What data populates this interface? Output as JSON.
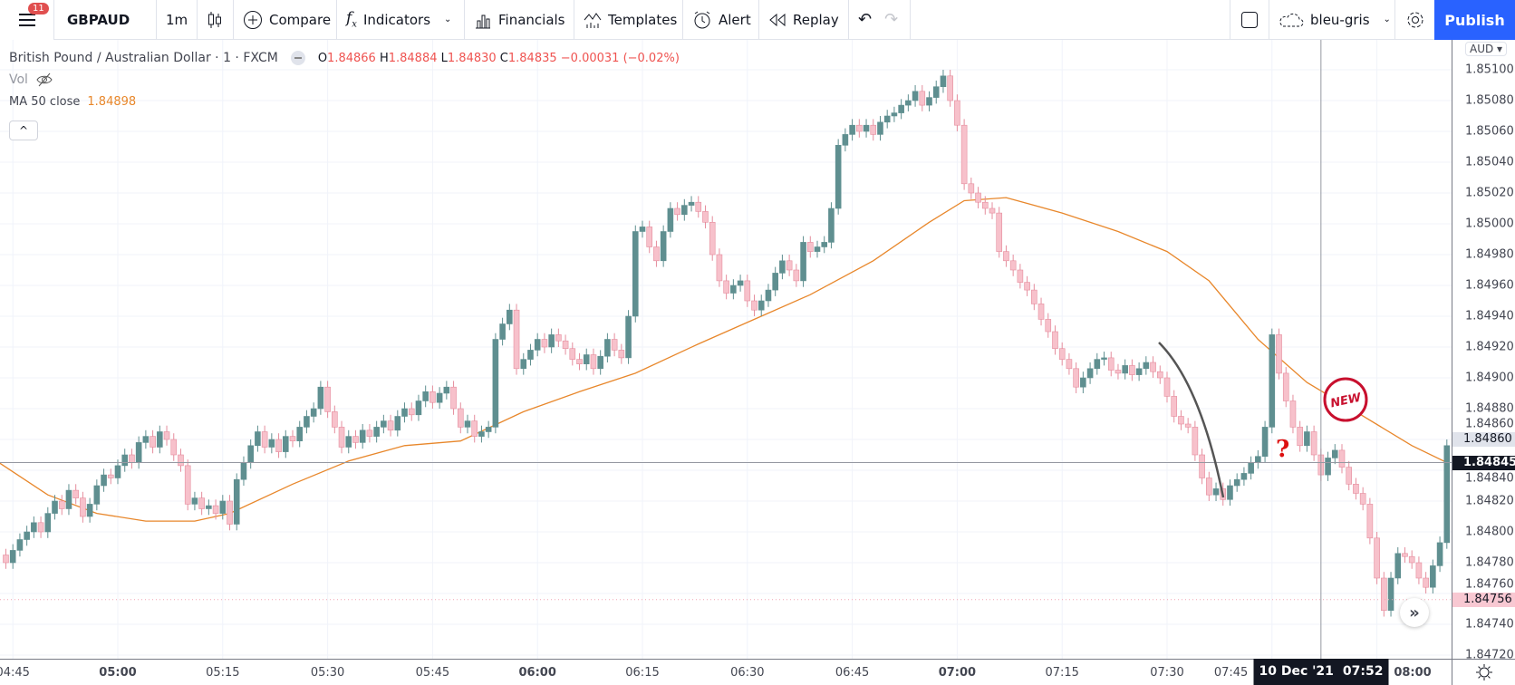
{
  "toolbar": {
    "notification_count": "11",
    "symbol": "GBPAUD",
    "interval": "1m",
    "compare": "Compare",
    "indicators": "Indicators",
    "financials": "Financials",
    "templates": "Templates",
    "alert": "Alert",
    "replay": "Replay",
    "layout_name": "bleu-gris",
    "publish": "Publish"
  },
  "legend": {
    "title": "British Pound / Australian Dollar · 1 · FXCM",
    "o_label": "O",
    "o": "1.84866",
    "h_label": "H",
    "h": "1.84884",
    "l_label": "L",
    "l": "1.84830",
    "c_label": "C",
    "c": "1.84835",
    "change": "−0.00031 (−0.02%)",
    "vol": "Vol",
    "ma_label": "MA 50 close",
    "ma_value": "1.84898",
    "collapse": "^"
  },
  "price_axis": {
    "currency": "AUD ▾",
    "ticks": [
      "1.85100",
      "1.85080",
      "1.85060",
      "1.85040",
      "1.85020",
      "1.85000",
      "1.84980",
      "1.84960",
      "1.84940",
      "1.84920",
      "1.84900",
      "1.84880",
      "1.84860",
      "1.84840",
      "1.84820",
      "1.84800",
      "1.84780",
      "1.84760",
      "1.84740",
      "1.84720"
    ],
    "last_price_label": "1.84860",
    "crosshair_price_label": "1.84845",
    "pink_price_label": "1.84756"
  },
  "time_axis": {
    "labels": [
      {
        "t": "04:45",
        "bold": false
      },
      {
        "t": "05:00",
        "bold": true
      },
      {
        "t": "05:15",
        "bold": false
      },
      {
        "t": "05:30",
        "bold": false
      },
      {
        "t": "05:45",
        "bold": false
      },
      {
        "t": "06:00",
        "bold": true
      },
      {
        "t": "06:15",
        "bold": false
      },
      {
        "t": "06:30",
        "bold": false
      },
      {
        "t": "06:45",
        "bold": false
      },
      {
        "t": "07:00",
        "bold": true
      },
      {
        "t": "07:15",
        "bold": false
      },
      {
        "t": "07:30",
        "bold": false
      },
      {
        "t": "07:45",
        "bold": false
      },
      {
        "t": "08:00",
        "bold": true
      }
    ],
    "crosshair_date": "10 Dec '21",
    "crosshair_time": "07:52"
  },
  "annotations": {
    "sticker": "NEW",
    "question": "?"
  },
  "colors": {
    "up": "#5f8f90",
    "down": "#f7c1cb",
    "down_border": "#e58d9d",
    "ma": "#e8872b",
    "accent": "#2962ff"
  },
  "chart_data": {
    "type": "candlestick",
    "interval": "1m",
    "first_candle_time": "04:44",
    "closes": [
      1.8478,
      1.84788,
      1.84795,
      1.848,
      1.84806,
      1.848,
      1.84812,
      1.8482,
      1.84815,
      1.84827,
      1.84822,
      1.8481,
      1.84818,
      1.8483,
      1.84837,
      1.84835,
      1.84843,
      1.8485,
      1.84845,
      1.84858,
      1.84862,
      1.84855,
      1.84865,
      1.8486,
      1.8485,
      1.84843,
      1.84818,
      1.84822,
      1.84815,
      1.84817,
      1.84812,
      1.8482,
      1.84805,
      1.84834,
      1.84845,
      1.84856,
      1.84865,
      1.84855,
      1.8486,
      1.84852,
      1.84862,
      1.84859,
      1.84868,
      1.84875,
      1.8488,
      1.84894,
      1.84878,
      1.84868,
      1.84855,
      1.84862,
      1.84858,
      1.84866,
      1.84862,
      1.84868,
      1.84872,
      1.84866,
      1.84875,
      1.8488,
      1.84876,
      1.84885,
      1.84891,
      1.84884,
      1.8489,
      1.84894,
      1.8488,
      1.84868,
      1.84872,
      1.84862,
      1.84865,
      1.84868,
      1.84925,
      1.84935,
      1.84944,
      1.84906,
      1.84912,
      1.84918,
      1.84925,
      1.8492,
      1.84928,
      1.84924,
      1.84919,
      1.84912,
      1.84909,
      1.84915,
      1.84906,
      1.84914,
      1.84925,
      1.84918,
      1.84913,
      1.8494,
      1.84995,
      1.84998,
      1.84985,
      1.84976,
      1.84995,
      1.8501,
      1.85006,
      1.85012,
      1.85014,
      1.85008,
      1.85001,
      1.8498,
      1.84963,
      1.84955,
      1.8496,
      1.84963,
      1.8495,
      1.84944,
      1.8495,
      1.84957,
      1.84968,
      1.84976,
      1.8497,
      1.84963,
      1.84988,
      1.84982,
      1.84985,
      1.84988,
      1.8501,
      1.85051,
      1.85058,
      1.85064,
      1.8506,
      1.85064,
      1.85058,
      1.85066,
      1.8507,
      1.85072,
      1.85077,
      1.8508,
      1.85086,
      1.85077,
      1.85082,
      1.85089,
      1.85096,
      1.8508,
      1.85064,
      1.85026,
      1.8502,
      1.85014,
      1.8501,
      1.85007,
      1.84982,
      1.84976,
      1.8497,
      1.84962,
      1.84957,
      1.84948,
      1.84938,
      1.8493,
      1.84919,
      1.84912,
      1.84906,
      1.84894,
      1.849,
      1.84906,
      1.84912,
      1.84913,
      1.84905,
      1.84903,
      1.84908,
      1.84902,
      1.84906,
      1.8491,
      1.84904,
      1.849,
      1.84888,
      1.84875,
      1.8487,
      1.84868,
      1.8485,
      1.84835,
      1.84824,
      1.84828,
      1.84821,
      1.8483,
      1.84834,
      1.84838,
      1.84845,
      1.84849,
      1.84868,
      1.84928,
      1.84903,
      1.84885,
      1.84868,
      1.84856,
      1.84865,
      1.8485,
      1.84837,
      1.84848,
      1.84853,
      1.84842,
      1.84831,
      1.84825,
      1.84818,
      1.84796,
      1.8477,
      1.84749,
      1.8477,
      1.84786,
      1.84784,
      1.8478,
      1.8477,
      1.84764,
      1.84778,
      1.84793,
      1.84856
    ],
    "ma50": [
      [
        "04:43",
        1.84845
      ],
      [
        "04:50",
        1.84824
      ],
      [
        "04:57",
        1.84812
      ],
      [
        "05:04",
        1.84807
      ],
      [
        "05:11",
        1.84807
      ],
      [
        "05:16",
        1.84812
      ],
      [
        "05:25",
        1.84831
      ],
      [
        "05:33",
        1.84846
      ],
      [
        "05:41",
        1.84856
      ],
      [
        "05:49",
        1.84859
      ],
      [
        "05:58",
        1.84878
      ],
      [
        "06:06",
        1.84891
      ],
      [
        "06:14",
        1.84903
      ],
      [
        "06:23",
        1.84922
      ],
      [
        "06:31",
        1.84938
      ],
      [
        "06:39",
        1.84954
      ],
      [
        "06:48",
        1.84976
      ],
      [
        "06:56",
        1.85001
      ],
      [
        "07:01",
        1.85015
      ],
      [
        "07:07",
        1.85017
      ],
      [
        "07:15",
        1.85007
      ],
      [
        "07:23",
        1.84995
      ],
      [
        "07:30",
        1.84982
      ],
      [
        "07:36",
        1.84963
      ],
      [
        "07:43",
        1.84925
      ],
      [
        "07:50",
        1.84897
      ],
      [
        "07:57",
        1.84878
      ],
      [
        "08:05",
        1.84856
      ],
      [
        "08:10",
        1.84845
      ]
    ],
    "ylim": [
      1.8471,
      1.8512
    ],
    "crosshair": {
      "time": "07:52",
      "price": 1.84845
    },
    "grid": true
  }
}
